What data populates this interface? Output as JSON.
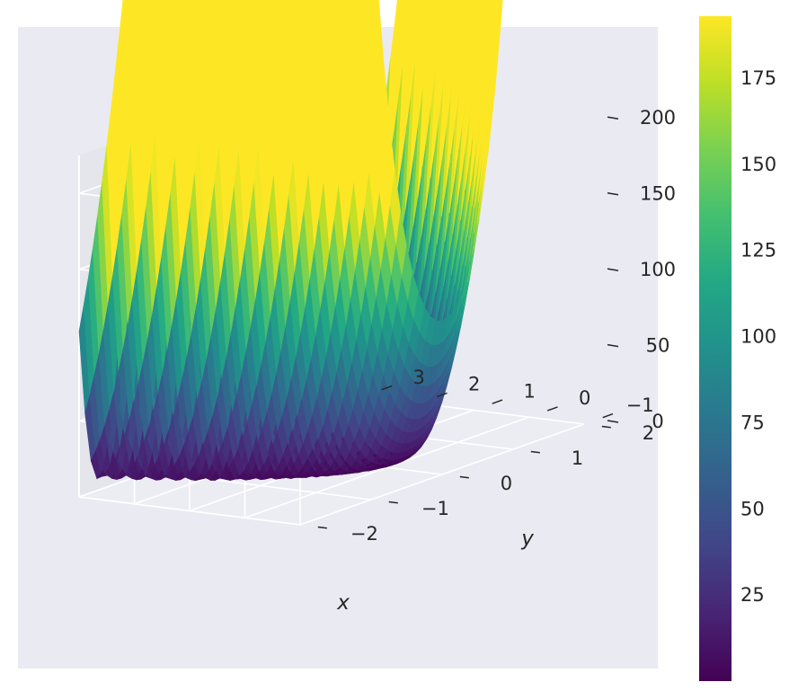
{
  "chart_data": {
    "type": "surface3d",
    "function": "Rosenbrock: z = (1 - x)^2 + 100 (y - x^2)^2",
    "xlabel": "x",
    "ylabel": "y",
    "zlabel": "",
    "xlim": [
      -2,
      2
    ],
    "ylim": [
      -1,
      3
    ],
    "zlim": [
      0,
      225
    ],
    "x_ticks": [
      -2,
      -1,
      0,
      1,
      2
    ],
    "x_tick_labels": [
      "−2",
      "−1",
      "0",
      "1",
      "2"
    ],
    "y_ticks": [
      -1,
      0,
      1,
      2,
      3
    ],
    "y_tick_labels": [
      "−1",
      "0",
      "1",
      "2",
      "3"
    ],
    "z_ticks": [
      0,
      50,
      100,
      150,
      200
    ],
    "z_tick_labels": [
      "0",
      "50",
      "100",
      "150",
      "200"
    ],
    "colormap": "viridis",
    "colorbar": {
      "range": [
        0,
        193
      ],
      "ticks": [
        25,
        50,
        75,
        100,
        125,
        150,
        175
      ],
      "tick_labels": [
        "25",
        "50",
        "75",
        "100",
        "125",
        "150",
        "175"
      ]
    },
    "grid": true,
    "pane_color": "#eaeaf2",
    "grid_color": "#ffffff"
  }
}
